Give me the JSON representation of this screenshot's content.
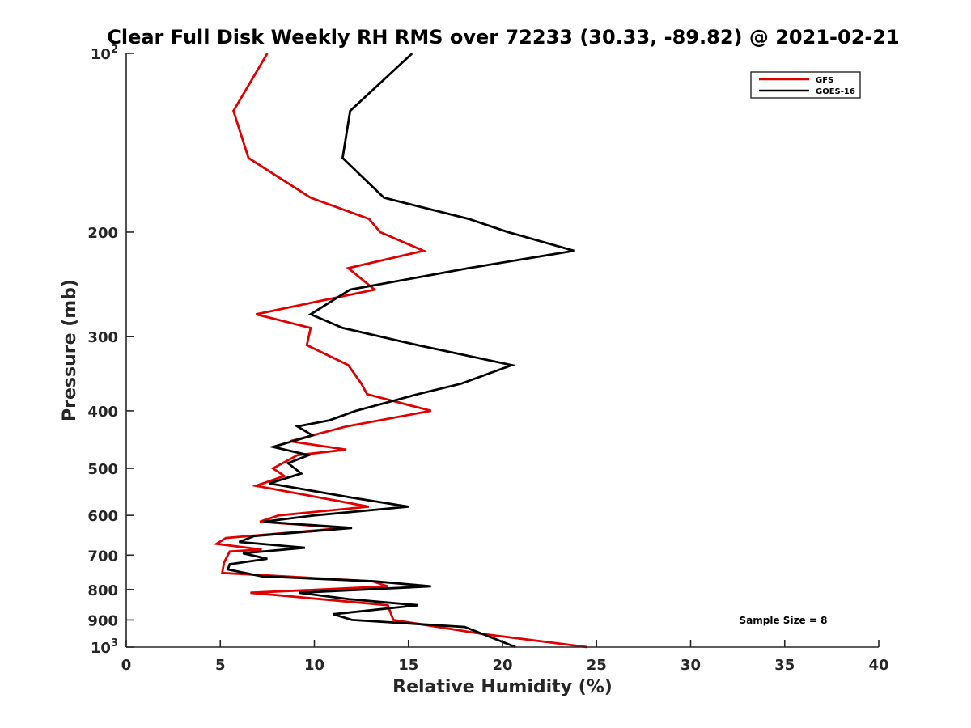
{
  "chart_data": {
    "type": "line",
    "title": "Clear Full Disk Weekly RH RMS over 72233 (30.33, -89.82) @ 2021-02-21",
    "xlabel": "Relative Humidity (%)",
    "ylabel": "Pressure (mb)",
    "xlim": [
      0,
      40
    ],
    "ylim": [
      100,
      1000
    ],
    "yscale": "log",
    "y_reversed": true,
    "x_ticks": [
      "0",
      "5",
      "10",
      "15",
      "20",
      "25",
      "30",
      "35",
      "40"
    ],
    "y_ticks": [
      {
        "value": 100,
        "base": "10",
        "exp": "2"
      },
      {
        "value": 200,
        "label": "200"
      },
      {
        "value": 300,
        "label": "300"
      },
      {
        "value": 400,
        "label": "400"
      },
      {
        "value": 500,
        "label": "500"
      },
      {
        "value": 600,
        "label": "600"
      },
      {
        "value": 700,
        "label": "700"
      },
      {
        "value": 800,
        "label": "800"
      },
      {
        "value": 900,
        "label": "900"
      },
      {
        "value": 1000,
        "base": "10",
        "exp": "3"
      }
    ],
    "series": [
      {
        "name": "GFS",
        "color": "#e00000",
        "points": [
          [
            7.5,
            100
          ],
          [
            5.7,
            125
          ],
          [
            6.5,
            150
          ],
          [
            9.8,
            175
          ],
          [
            12.9,
            190
          ],
          [
            13.5,
            200
          ],
          [
            15.8,
            215
          ],
          [
            11.8,
            230
          ],
          [
            13.2,
            250
          ],
          [
            6.9,
            275
          ],
          [
            9.8,
            290
          ],
          [
            9.6,
            310
          ],
          [
            11.8,
            335
          ],
          [
            12.5,
            360
          ],
          [
            12.8,
            375
          ],
          [
            16.2,
            400
          ],
          [
            11.7,
            425
          ],
          [
            8.7,
            450
          ],
          [
            11.7,
            465
          ],
          [
            9.1,
            475
          ],
          [
            7.8,
            500
          ],
          [
            8.4,
            515
          ],
          [
            6.9,
            535
          ],
          [
            12.9,
            580
          ],
          [
            8.1,
            600
          ],
          [
            7.1,
            615
          ],
          [
            11.6,
            630
          ],
          [
            5.3,
            655
          ],
          [
            4.8,
            670
          ],
          [
            7.2,
            685
          ],
          [
            5.5,
            690
          ],
          [
            5.2,
            720
          ],
          [
            5.1,
            750
          ],
          [
            13.1,
            775
          ],
          [
            13.9,
            790
          ],
          [
            6.6,
            810
          ],
          [
            13.9,
            850
          ],
          [
            14.2,
            900
          ],
          [
            18.9,
            950
          ],
          [
            24.5,
            1000
          ]
        ]
      },
      {
        "name": "GOES-16",
        "color": "#000000",
        "points": [
          [
            15.2,
            100
          ],
          [
            11.9,
            125
          ],
          [
            11.5,
            150
          ],
          [
            13.7,
            175
          ],
          [
            18.2,
            190
          ],
          [
            20.3,
            200
          ],
          [
            23.8,
            215
          ],
          [
            18.2,
            230
          ],
          [
            11.9,
            250
          ],
          [
            9.8,
            275
          ],
          [
            11.5,
            290
          ],
          [
            15.5,
            310
          ],
          [
            20.5,
            335
          ],
          [
            17.8,
            360
          ],
          [
            15.5,
            375
          ],
          [
            12.2,
            400
          ],
          [
            10.8,
            415
          ],
          [
            9.1,
            425
          ],
          [
            9.9,
            440
          ],
          [
            7.8,
            460
          ],
          [
            9.7,
            475
          ],
          [
            8.6,
            490
          ],
          [
            9.3,
            510
          ],
          [
            7.6,
            530
          ],
          [
            12.0,
            560
          ],
          [
            15.0,
            580
          ],
          [
            10.0,
            600
          ],
          [
            7.3,
            615
          ],
          [
            12.0,
            630
          ],
          [
            6.8,
            650
          ],
          [
            6.0,
            665
          ],
          [
            9.5,
            680
          ],
          [
            6.2,
            695
          ],
          [
            7.5,
            710
          ],
          [
            5.5,
            725
          ],
          [
            5.4,
            740
          ],
          [
            7.2,
            760
          ],
          [
            13.2,
            775
          ],
          [
            16.2,
            790
          ],
          [
            9.2,
            810
          ],
          [
            11.8,
            830
          ],
          [
            15.5,
            850
          ],
          [
            11.0,
            880
          ],
          [
            12.0,
            900
          ],
          [
            18.0,
            925
          ],
          [
            20.7,
            1000
          ]
        ]
      }
    ],
    "legend": {
      "location": "top-right",
      "entries": [
        "GFS",
        "GOES-16"
      ]
    },
    "annotation": "Sample Size = 8"
  }
}
